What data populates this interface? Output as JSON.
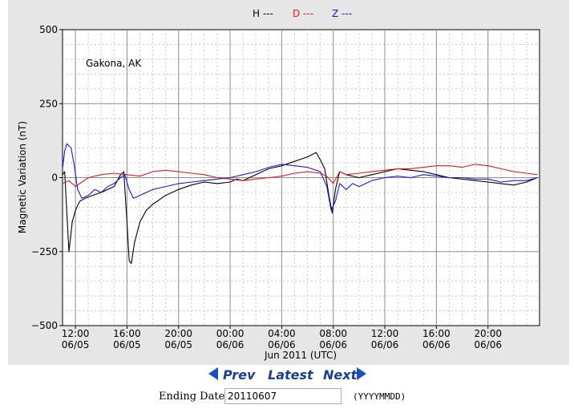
{
  "legend": [
    {
      "label": "H ---",
      "color": "#000000"
    },
    {
      "label": "D ---",
      "color": "#e41a1c"
    },
    {
      "label": "Z ---",
      "color": "#1a1adc"
    }
  ],
  "nav": {
    "prev": "Prev",
    "latest": "Latest",
    "next": "Next"
  },
  "form": {
    "label": "Ending Date:",
    "value": "20110607",
    "format": "(YYYYMMDD)"
  },
  "chart_data": {
    "type": "line",
    "station": "Gakona, AK",
    "ylabel": "Magnetic Variation (nT)",
    "xlabel": "Jun 2011 (UTC)",
    "ylim": [
      -500,
      500
    ],
    "xlim": [
      "2011-06-05 11:00",
      "2011-06-07 00:00"
    ],
    "yticks": [
      {
        "value": 500,
        "label": "500"
      },
      {
        "value": 250,
        "label": "250"
      },
      {
        "value": 0,
        "label": "0"
      },
      {
        "value": -250,
        "label": "−250"
      },
      {
        "value": -500,
        "label": "−500"
      }
    ],
    "xticks": [
      {
        "time": "2011-06-05 12:00",
        "time_label": "12:00",
        "date_label": "06/05"
      },
      {
        "time": "2011-06-05 16:00",
        "time_label": "16:00",
        "date_label": "06/05"
      },
      {
        "time": "2011-06-05 20:00",
        "time_label": "20:00",
        "date_label": "06/05"
      },
      {
        "time": "2011-06-06 00:00",
        "time_label": "00:00",
        "date_label": "06/06"
      },
      {
        "time": "2011-06-06 04:00",
        "time_label": "04:00",
        "date_label": "06/06"
      },
      {
        "time": "2011-06-06 08:00",
        "time_label": "08:00",
        "date_label": "06/06"
      },
      {
        "time": "2011-06-06 12:00",
        "time_label": "12:00",
        "date_label": "06/06"
      },
      {
        "time": "2011-06-06 16:00",
        "time_label": "16:00",
        "date_label": "06/06"
      },
      {
        "time": "2011-06-06 20:00",
        "time_label": "20:00",
        "date_label": "06/06"
      }
    ],
    "grid": true,
    "legend_position": "top-center",
    "series": [
      {
        "name": "H",
        "color": "#000000",
        "points": [
          [
            "2011-06-05 11:00",
            10
          ],
          [
            "2011-06-05 11:10",
            20
          ],
          [
            "2011-06-05 11:20",
            -120
          ],
          [
            "2011-06-05 11:30",
            -250
          ],
          [
            "2011-06-05 11:45",
            -150
          ],
          [
            "2011-06-05 12:00",
            -110
          ],
          [
            "2011-06-05 12:20",
            -80
          ],
          [
            "2011-06-05 12:45",
            -70
          ],
          [
            "2011-06-05 13:20",
            -60
          ],
          [
            "2011-06-05 14:00",
            -50
          ],
          [
            "2011-06-05 14:30",
            -40
          ],
          [
            "2011-06-05 15:00",
            -30
          ],
          [
            "2011-06-05 15:30",
            10
          ],
          [
            "2011-06-05 15:45",
            20
          ],
          [
            "2011-06-05 16:00",
            -150
          ],
          [
            "2011-06-05 16:10",
            -280
          ],
          [
            "2011-06-05 16:20",
            -290
          ],
          [
            "2011-06-05 16:35",
            -220
          ],
          [
            "2011-06-05 17:00",
            -150
          ],
          [
            "2011-06-05 17:30",
            -110
          ],
          [
            "2011-06-05 18:00",
            -90
          ],
          [
            "2011-06-05 19:00",
            -60
          ],
          [
            "2011-06-05 20:00",
            -40
          ],
          [
            "2011-06-05 21:00",
            -25
          ],
          [
            "2011-06-05 22:00",
            -15
          ],
          [
            "2011-06-05 23:00",
            -20
          ],
          [
            "2011-06-06 00:00",
            -15
          ],
          [
            "2011-06-06 00:30",
            -5
          ],
          [
            "2011-06-06 01:00",
            -10
          ],
          [
            "2011-06-06 02:00",
            10
          ],
          [
            "2011-06-06 03:00",
            30
          ],
          [
            "2011-06-06 04:00",
            40
          ],
          [
            "2011-06-06 05:00",
            55
          ],
          [
            "2011-06-06 06:00",
            70
          ],
          [
            "2011-06-06 06:40",
            85
          ],
          [
            "2011-06-06 07:00",
            60
          ],
          [
            "2011-06-06 07:20",
            30
          ],
          [
            "2011-06-06 07:40",
            -60
          ],
          [
            "2011-06-06 07:55",
            -120
          ],
          [
            "2011-06-06 08:10",
            -40
          ],
          [
            "2011-06-06 08:30",
            20
          ],
          [
            "2011-06-06 09:00",
            10
          ],
          [
            "2011-06-06 10:00",
            0
          ],
          [
            "2011-06-06 11:00",
            10
          ],
          [
            "2011-06-06 12:00",
            20
          ],
          [
            "2011-06-06 13:00",
            30
          ],
          [
            "2011-06-06 14:00",
            25
          ],
          [
            "2011-06-06 15:00",
            20
          ],
          [
            "2011-06-06 16:00",
            10
          ],
          [
            "2011-06-06 17:00",
            0
          ],
          [
            "2011-06-06 18:00",
            -5
          ],
          [
            "2011-06-06 19:00",
            -10
          ],
          [
            "2011-06-06 20:00",
            -15
          ],
          [
            "2011-06-06 21:00",
            -20
          ],
          [
            "2011-06-06 22:00",
            -25
          ],
          [
            "2011-06-06 23:00",
            -15
          ],
          [
            "2011-06-06 23:50",
            0
          ]
        ]
      },
      {
        "name": "D",
        "color": "#e41a1c",
        "points": [
          [
            "2011-06-05 11:00",
            -20
          ],
          [
            "2011-06-05 11:30",
            -10
          ],
          [
            "2011-06-05 12:00",
            -30
          ],
          [
            "2011-06-05 12:30",
            -15
          ],
          [
            "2011-06-05 13:00",
            0
          ],
          [
            "2011-06-05 14:00",
            10
          ],
          [
            "2011-06-05 15:00",
            15
          ],
          [
            "2011-06-05 16:00",
            10
          ],
          [
            "2011-06-05 17:00",
            5
          ],
          [
            "2011-06-05 18:00",
            20
          ],
          [
            "2011-06-05 19:00",
            25
          ],
          [
            "2011-06-05 20:00",
            20
          ],
          [
            "2011-06-05 21:00",
            15
          ],
          [
            "2011-06-05 22:00",
            10
          ],
          [
            "2011-06-05 23:00",
            0
          ],
          [
            "2011-06-06 00:00",
            -5
          ],
          [
            "2011-06-06 01:00",
            -10
          ],
          [
            "2011-06-06 02:00",
            -5
          ],
          [
            "2011-06-06 03:00",
            0
          ],
          [
            "2011-06-06 04:00",
            5
          ],
          [
            "2011-06-06 05:00",
            15
          ],
          [
            "2011-06-06 06:00",
            20
          ],
          [
            "2011-06-06 07:00",
            15
          ],
          [
            "2011-06-06 07:30",
            5
          ],
          [
            "2011-06-06 08:00",
            -20
          ],
          [
            "2011-06-06 08:30",
            20
          ],
          [
            "2011-06-06 09:00",
            10
          ],
          [
            "2011-06-06 10:00",
            15
          ],
          [
            "2011-06-06 11:00",
            20
          ],
          [
            "2011-06-06 12:00",
            25
          ],
          [
            "2011-06-06 13:00",
            30
          ],
          [
            "2011-06-06 14:00",
            30
          ],
          [
            "2011-06-06 15:00",
            35
          ],
          [
            "2011-06-06 16:00",
            40
          ],
          [
            "2011-06-06 17:00",
            40
          ],
          [
            "2011-06-06 18:00",
            35
          ],
          [
            "2011-06-06 19:00",
            45
          ],
          [
            "2011-06-06 20:00",
            40
          ],
          [
            "2011-06-06 21:00",
            30
          ],
          [
            "2011-06-06 22:00",
            20
          ],
          [
            "2011-06-06 23:00",
            15
          ],
          [
            "2011-06-06 23:50",
            10
          ]
        ]
      },
      {
        "name": "Z",
        "color": "#1a1adc",
        "points": [
          [
            "2011-06-05 11:00",
            30
          ],
          [
            "2011-06-05 11:10",
            90
          ],
          [
            "2011-06-05 11:20",
            115
          ],
          [
            "2011-06-05 11:40",
            100
          ],
          [
            "2011-06-05 11:55",
            40
          ],
          [
            "2011-06-05 12:10",
            -40
          ],
          [
            "2011-06-05 12:30",
            -70
          ],
          [
            "2011-06-05 13:00",
            -60
          ],
          [
            "2011-06-05 13:30",
            -40
          ],
          [
            "2011-06-05 14:00",
            -50
          ],
          [
            "2011-06-05 14:30",
            -30
          ],
          [
            "2011-06-05 15:00",
            -20
          ],
          [
            "2011-06-05 15:30",
            0
          ],
          [
            "2011-06-05 15:50",
            10
          ],
          [
            "2011-06-05 16:10",
            -40
          ],
          [
            "2011-06-05 16:30",
            -70
          ],
          [
            "2011-06-05 17:00",
            -60
          ],
          [
            "2011-06-05 17:30",
            -50
          ],
          [
            "2011-06-05 18:00",
            -40
          ],
          [
            "2011-06-05 19:00",
            -30
          ],
          [
            "2011-06-05 20:00",
            -20
          ],
          [
            "2011-06-05 21:00",
            -15
          ],
          [
            "2011-06-05 22:00",
            -10
          ],
          [
            "2011-06-05 23:00",
            -5
          ],
          [
            "2011-06-06 00:00",
            0
          ],
          [
            "2011-06-06 01:00",
            10
          ],
          [
            "2011-06-06 02:00",
            20
          ],
          [
            "2011-06-06 03:00",
            35
          ],
          [
            "2011-06-06 04:00",
            45
          ],
          [
            "2011-06-06 05:00",
            40
          ],
          [
            "2011-06-06 06:00",
            35
          ],
          [
            "2011-06-06 07:00",
            20
          ],
          [
            "2011-06-06 07:30",
            -30
          ],
          [
            "2011-06-06 07:50",
            -110
          ],
          [
            "2011-06-06 08:10",
            -80
          ],
          [
            "2011-06-06 08:30",
            -20
          ],
          [
            "2011-06-06 09:00",
            -40
          ],
          [
            "2011-06-06 09:30",
            -20
          ],
          [
            "2011-06-06 10:00",
            -30
          ],
          [
            "2011-06-06 11:00",
            -10
          ],
          [
            "2011-06-06 12:00",
            0
          ],
          [
            "2011-06-06 13:00",
            5
          ],
          [
            "2011-06-06 14:00",
            0
          ],
          [
            "2011-06-06 15:00",
            10
          ],
          [
            "2011-06-06 16:00",
            5
          ],
          [
            "2011-06-06 17:00",
            0
          ],
          [
            "2011-06-06 18:00",
            0
          ],
          [
            "2011-06-06 19:00",
            -5
          ],
          [
            "2011-06-06 20:00",
            -5
          ],
          [
            "2011-06-06 21:00",
            -15
          ],
          [
            "2011-06-06 22:00",
            -10
          ],
          [
            "2011-06-06 23:00",
            -10
          ],
          [
            "2011-06-06 23:50",
            0
          ]
        ]
      }
    ]
  }
}
